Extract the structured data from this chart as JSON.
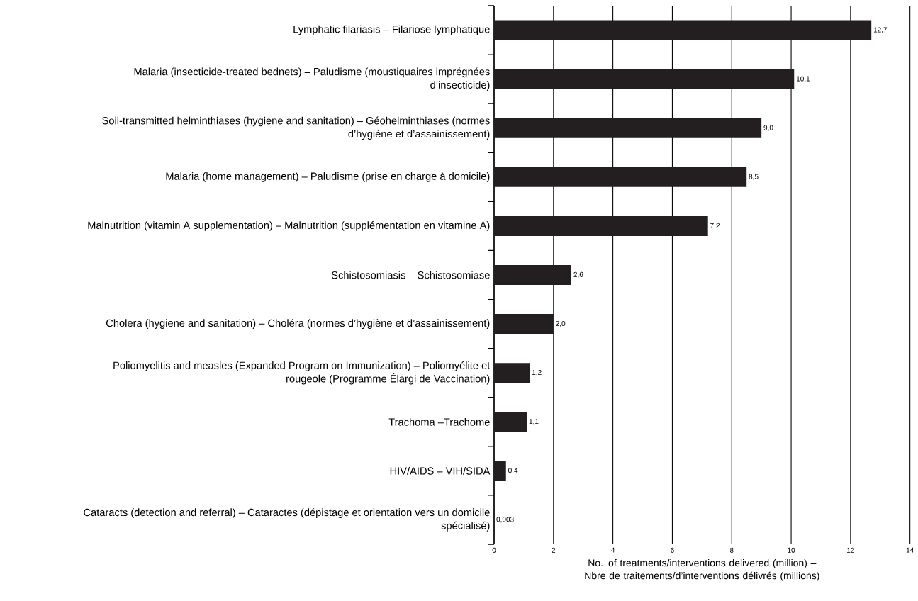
{
  "chart_data": {
    "type": "bar",
    "orientation": "horizontal",
    "categories": [
      "Lymphatic filariasis – Filariose lymphatique",
      "Malaria (insecticide-treated bednets) – Paludisme (moustiquaires imprégnées d’insecticide)",
      "Soil-transmitted helminthiases (hygiene and sanitation) – Géohelminthiases (normes d’hygiène et d’assainissement)",
      "Malaria (home management) – Paludisme (prise en charge à domicile)",
      "Malnutrition (vitamin A supplementation) – Malnutrition (supplémentation en vitamine A)",
      "Schistosomiasis – Schistosomiase",
      "Cholera (hygiene and sanitation) – Choléra (normes d’hygiène et d’assainissement)",
      "Poliomyelitis and measles (Expanded Program on Immunization) – Poliomyélite et rougeole (Programme Élargi de Vaccination)",
      "Trachoma –Trachome",
      "HIV/AIDS – VIH/SIDA",
      "Cataracts (detection and referral) – Cataractes (dépistage et orientation vers un domicile spécialisé)"
    ],
    "values": [
      12.7,
      10.1,
      9.0,
      8.5,
      7.2,
      2.6,
      2.0,
      1.2,
      1.1,
      0.4,
      0.003
    ],
    "value_labels": [
      "12,7",
      "10,1",
      "9,0",
      "8,5",
      "7,2",
      "2,6",
      "2,0",
      "1,2",
      "1,1",
      "0,4",
      "0,003"
    ],
    "color": "#231f20",
    "xlabel": "No. of treatments/interventions delivered (million) – Nbre de traitements/d’interventions délivrés (millions)",
    "xlim": [
      0,
      14
    ],
    "xticks": [
      0,
      2,
      4,
      6,
      8,
      10,
      12,
      14
    ],
    "grid": "x"
  }
}
